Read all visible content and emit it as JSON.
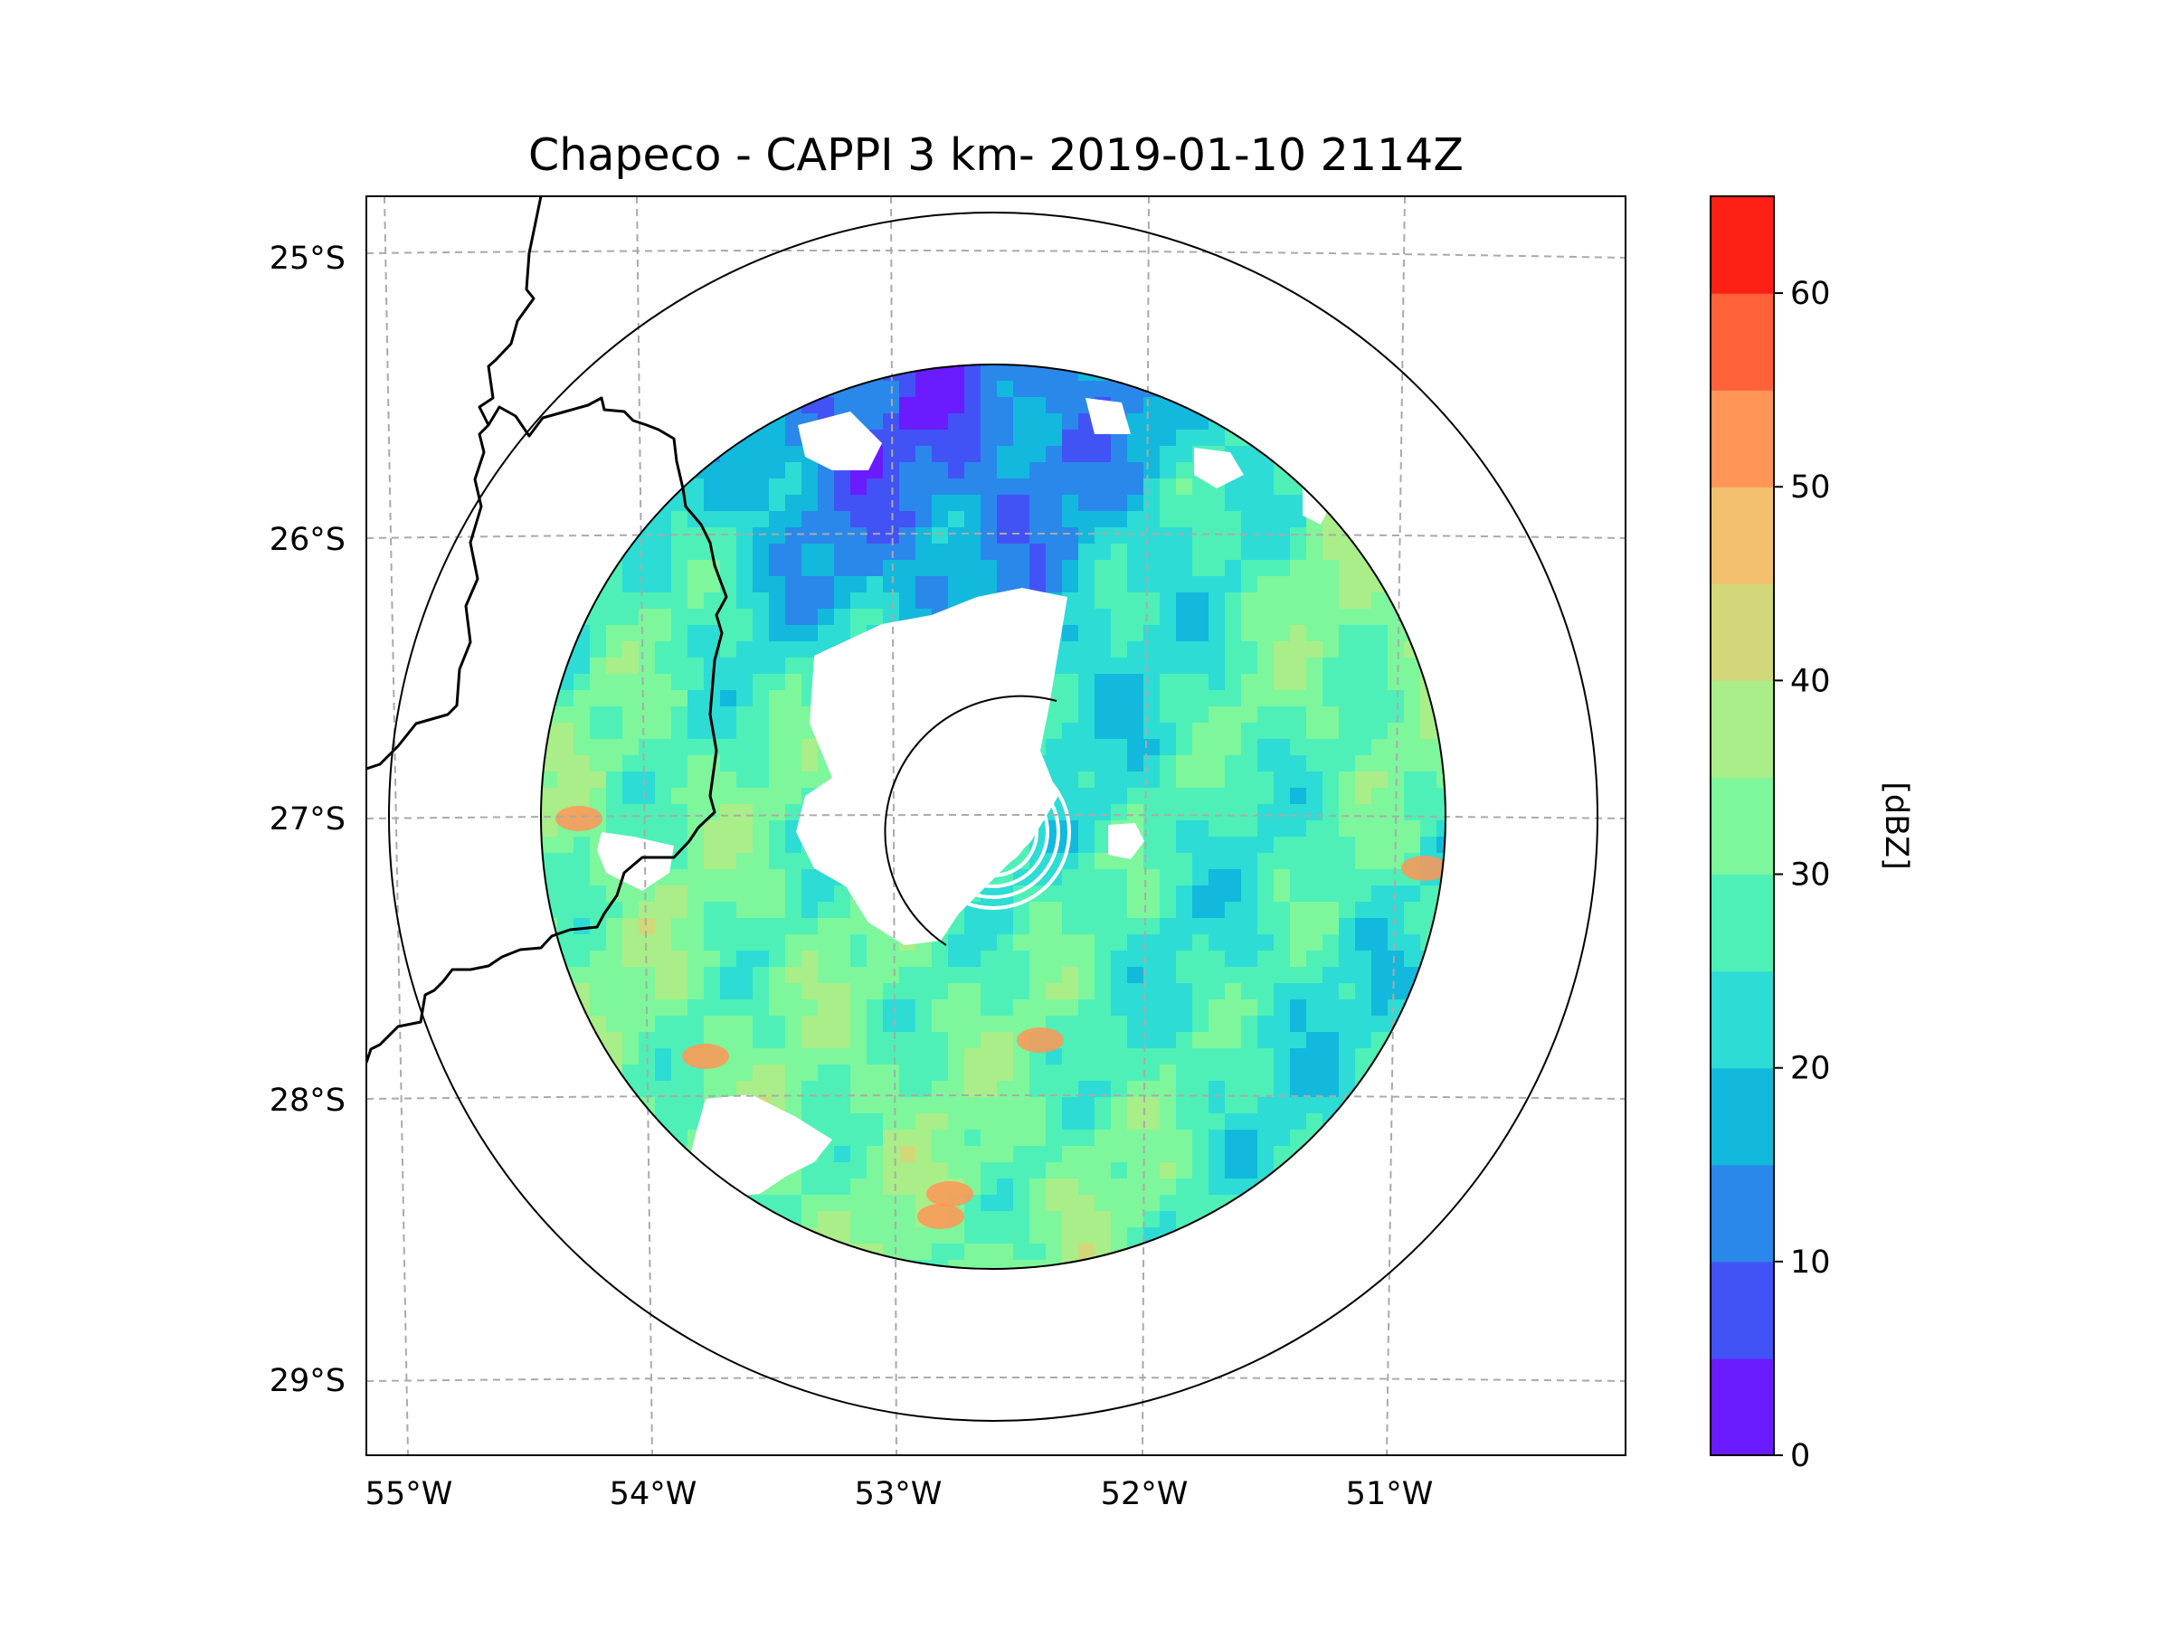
{
  "title": "Chapeco - CAPPI 3 km- 2019-01-10 2114Z",
  "map": {
    "lon_ticks": [
      "55°W",
      "54°W",
      "53°W",
      "52°W",
      "51°W"
    ],
    "lat_ticks": [
      "25°S",
      "26°S",
      "27°S",
      "28°S",
      "29°S"
    ],
    "gridlines": "dashed",
    "range_rings": 2,
    "radar_site": {
      "name": "Chapeco",
      "lon": -52.6,
      "lat": -27.03
    },
    "coastline_color": "#000000"
  },
  "colorbar": {
    "label": "[dBZ]",
    "ticks": [
      "0",
      "10",
      "20",
      "30",
      "40",
      "50",
      "60"
    ],
    "min": 0,
    "max": 65,
    "step": 5,
    "colors": [
      "#6a1bff",
      "#4253f5",
      "#2a88ea",
      "#12b9dc",
      "#2ddcd4",
      "#4ef0b8",
      "#7ef69c",
      "#a9ee88",
      "#d2d87a",
      "#f2c06e",
      "#ff9556",
      "#ff6138",
      "#ff2015"
    ]
  },
  "chart_data": {
    "type": "heatmap",
    "title": "Chapeco - CAPPI 3 km- 2019-01-10 2114Z",
    "xlabel": "",
    "ylabel": "",
    "x_ticks": [
      "55°W",
      "54°W",
      "53°W",
      "52°W",
      "51°W"
    ],
    "y_ticks": [
      "25°S",
      "26°S",
      "27°S",
      "28°S",
      "29°S"
    ],
    "xlim": [
      -55.2,
      -50.1
    ],
    "ylim": [
      -29.3,
      -24.8
    ],
    "value_label": "[dBZ]",
    "value_range": [
      0,
      65
    ],
    "grid": true,
    "legend": "right"
  }
}
